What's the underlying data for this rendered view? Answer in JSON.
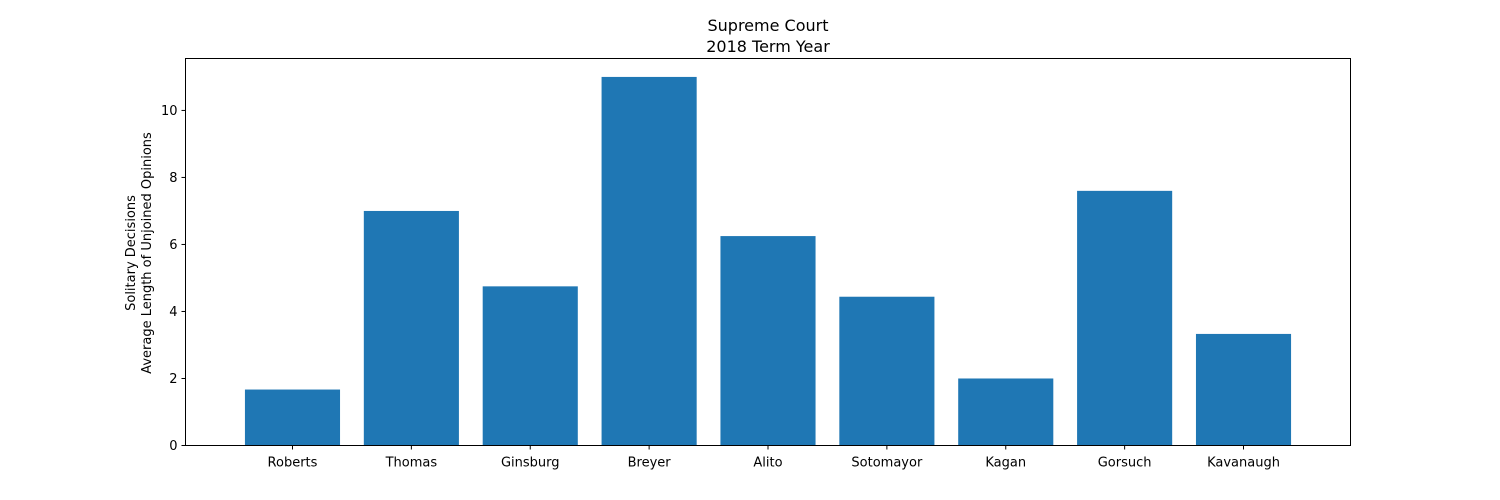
{
  "chart_data": {
    "type": "bar",
    "title_lines": [
      "Supreme Court",
      "2018 Term Year"
    ],
    "ylabel_lines": [
      "Solitary Decisions",
      "Average Length of Unjoined Opinions"
    ],
    "xlabel": "",
    "categories": [
      "Roberts",
      "Thomas",
      "Ginsburg",
      "Breyer",
      "Alito",
      "Sotomayor",
      "Kagan",
      "Gorsuch",
      "Kavanaugh"
    ],
    "values": [
      1.67,
      7.0,
      4.75,
      11.0,
      6.25,
      4.44,
      2.0,
      7.6,
      3.33
    ],
    "ylim": [
      0,
      11.55
    ],
    "yticks": [
      0,
      2,
      4,
      6,
      8,
      10
    ],
    "bar_color": "#1f77b4",
    "grid": false,
    "legend": "none"
  }
}
